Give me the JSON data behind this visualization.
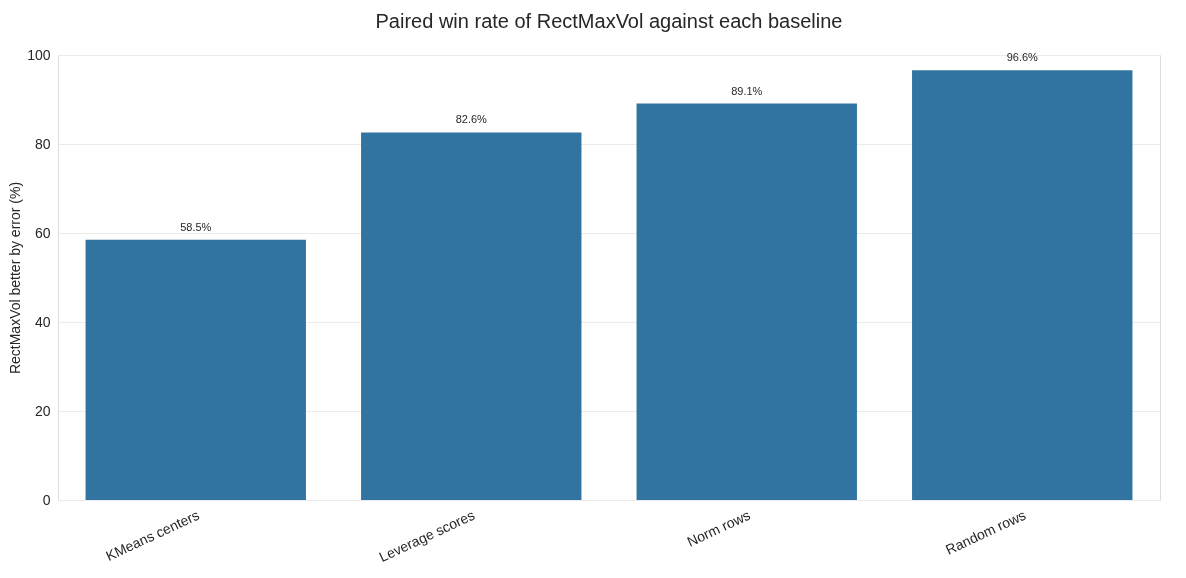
{
  "chart_data": {
    "type": "bar",
    "title": "Paired win rate of RectMaxVol against each baseline",
    "ylabel": "RectMaxVol better by error (%)",
    "categories": [
      "KMeans centers",
      "Leverage scores",
      "Norm rows",
      "Random rows"
    ],
    "values": [
      58.5,
      82.6,
      89.1,
      96.6
    ],
    "color": "#3274a1",
    "value_labels": [
      "58.5%",
      "82.6%",
      "89.1%",
      "96.6%"
    ],
    "ylim": [
      0,
      100
    ],
    "yticks": [
      0,
      20,
      40,
      60,
      80,
      100
    ],
    "grid": "y"
  }
}
